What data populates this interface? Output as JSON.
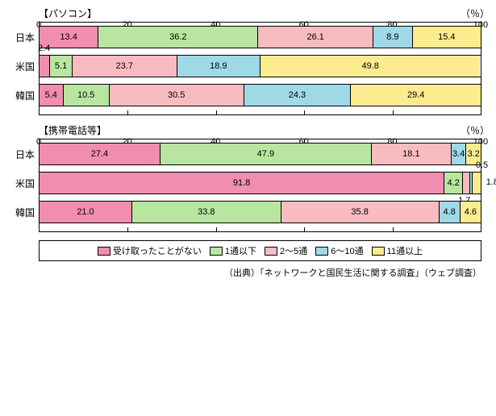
{
  "colors": {
    "c0": "#f08db0",
    "c1": "#b8e6a0",
    "c2": "#f8bcc0",
    "c3": "#9fd9e8",
    "c4": "#fcec8f"
  },
  "xticks": [
    0,
    20,
    40,
    60,
    80,
    100
  ],
  "unit_label": "（％）",
  "charts": [
    {
      "title": "【パソコン】",
      "rows": [
        {
          "label": "日本",
          "segs": [
            {
              "v": 13.4,
              "t": "13.4",
              "c": "c0"
            },
            {
              "v": 36.2,
              "t": "36.2",
              "c": "c1"
            },
            {
              "v": 26.1,
              "t": "26.1",
              "c": "c2"
            },
            {
              "v": 8.9,
              "t": "8.9",
              "c": "c3"
            },
            {
              "v": 15.4,
              "t": "15.4",
              "c": "c4"
            }
          ]
        },
        {
          "label": "米国",
          "segs": [
            {
              "v": 2.4,
              "t": "2.4",
              "c": "c0",
              "out": "tl"
            },
            {
              "v": 5.1,
              "t": "5.1",
              "c": "c1"
            },
            {
              "v": 23.7,
              "t": "23.7",
              "c": "c2"
            },
            {
              "v": 18.9,
              "t": "18.9",
              "c": "c3"
            },
            {
              "v": 49.8,
              "t": "49.8",
              "c": "c4"
            }
          ]
        },
        {
          "label": "韓国",
          "segs": [
            {
              "v": 5.4,
              "t": "5.4",
              "c": "c0"
            },
            {
              "v": 10.5,
              "t": "10.5",
              "c": "c1"
            },
            {
              "v": 30.5,
              "t": "30.5",
              "c": "c2"
            },
            {
              "v": 24.3,
              "t": "24.3",
              "c": "c3"
            },
            {
              "v": 29.4,
              "t": "29.4",
              "c": "c4"
            }
          ]
        }
      ]
    },
    {
      "title": "【携帯電話等】",
      "rows": [
        {
          "label": "日本",
          "segs": [
            {
              "v": 27.4,
              "t": "27.4",
              "c": "c0"
            },
            {
              "v": 47.9,
              "t": "47.9",
              "c": "c1"
            },
            {
              "v": 18.1,
              "t": "18.1",
              "c": "c2"
            },
            {
              "v": 3.4,
              "t": "3.4",
              "c": "c3"
            },
            {
              "v": 3.2,
              "t": "3.2",
              "c": "c4"
            }
          ]
        },
        {
          "label": "米国",
          "segs": [
            {
              "v": 91.8,
              "t": "91.8",
              "c": "c0"
            },
            {
              "v": 4.2,
              "t": "4.2",
              "c": "c1"
            },
            {
              "v": 1.7,
              "t": "1.7",
              "c": "c2",
              "out": "br"
            },
            {
              "v": 0.5,
              "t": "0.5",
              "c": "c3",
              "out": "tr"
            },
            {
              "v": 1.8,
              "t": "1.8",
              "c": "c4",
              "out": "r"
            }
          ]
        },
        {
          "label": "韓国",
          "segs": [
            {
              "v": 21.0,
              "t": "21.0",
              "c": "c0"
            },
            {
              "v": 33.8,
              "t": "33.8",
              "c": "c1"
            },
            {
              "v": 35.8,
              "t": "35.8",
              "c": "c2"
            },
            {
              "v": 4.8,
              "t": "4.8",
              "c": "c3"
            },
            {
              "v": 4.6,
              "t": "4.6",
              "c": "c4"
            }
          ]
        }
      ]
    }
  ],
  "legend": [
    {
      "c": "c0",
      "t": "受け取ったことがない"
    },
    {
      "c": "c1",
      "t": "1通以下"
    },
    {
      "c": "c2",
      "t": "2～5通"
    },
    {
      "c": "c3",
      "t": "6～10通"
    },
    {
      "c": "c4",
      "t": "11通以上"
    }
  ],
  "source": "（出典）「ネットワークと国民生活に関する調査」（ウェブ調査）"
}
